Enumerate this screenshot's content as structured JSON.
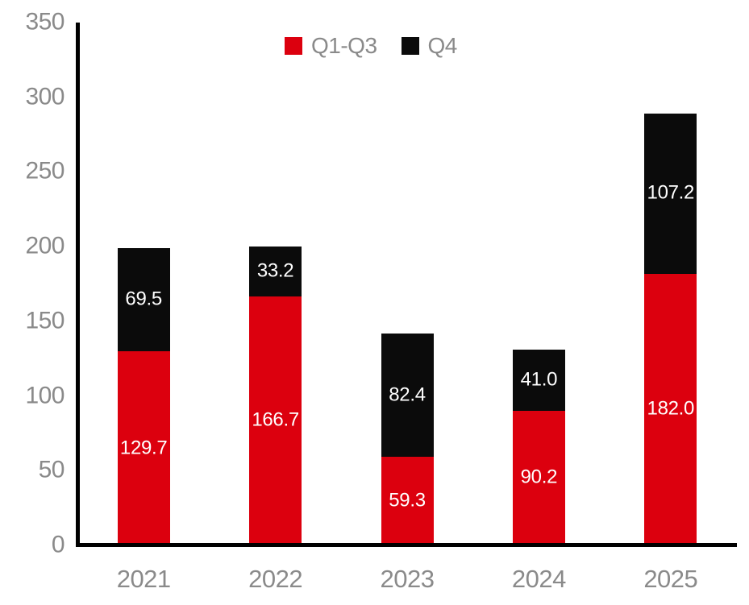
{
  "chart_data": {
    "type": "bar",
    "stacked": true,
    "title": "",
    "categories": [
      "2021",
      "2022",
      "2023",
      "2024",
      "2025"
    ],
    "series": [
      {
        "name": "Q1-Q3",
        "color": "#dc000e",
        "values": [
          129.7,
          166.7,
          59.3,
          90.2,
          182.0
        ]
      },
      {
        "name": "Q4",
        "color": "#0b0b0b",
        "values": [
          69.5,
          33.2,
          82.4,
          41.0,
          107.2
        ]
      }
    ],
    "ylim": [
      0,
      350
    ],
    "yticks": [
      0,
      50,
      100,
      150,
      200,
      250,
      300,
      350
    ],
    "grid": false,
    "legend_position": "top-center",
    "value_labels": {
      "color": "#ffffff",
      "decimals": 1
    },
    "axis_color": "#000000",
    "tick_label_color": "#8a8a8a"
  }
}
